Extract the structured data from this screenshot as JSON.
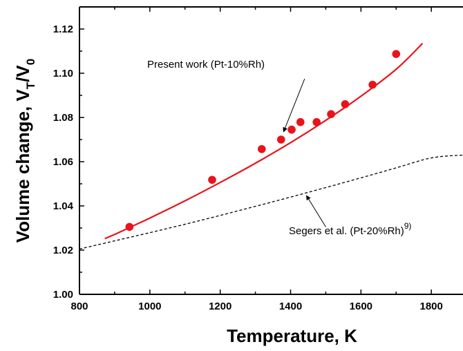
{
  "chart_data": {
    "type": "scatter",
    "xlabel": "Temperature, K",
    "ylabel": {
      "main": "Volume change, V",
      "sub1": "T",
      "slash": "/V",
      "sub2": "0"
    },
    "xlim": [
      800,
      1890
    ],
    "ylim": [
      1.0,
      1.13
    ],
    "x_ticks": [
      800,
      1000,
      1200,
      1400,
      1600,
      1800
    ],
    "y_ticks": [
      1.0,
      1.02,
      1.04,
      1.06,
      1.08,
      1.1,
      1.12
    ],
    "grid": false,
    "series": [
      {
        "name": "Present work (Pt-10%Rh)",
        "kind": "points",
        "color": "#e8141b",
        "x": [
          942,
          1177,
          1318,
          1373,
          1403,
          1428,
          1474,
          1515,
          1555,
          1633,
          1700
        ],
        "y": [
          1.0305,
          1.0518,
          1.0657,
          1.07,
          1.0745,
          1.0779,
          1.0779,
          1.0815,
          1.086,
          1.0948,
          1.1087
        ]
      },
      {
        "name": "Present work (Pt-10%Rh)",
        "kind": "fit-line",
        "color": "#e8141b",
        "x": [
          872,
          900,
          950,
          1000,
          1100,
          1200,
          1300,
          1400,
          1500,
          1600,
          1700,
          1775
        ],
        "y": [
          1.0252,
          1.0271,
          1.0308,
          1.0345,
          1.0423,
          1.0506,
          1.0593,
          1.0686,
          1.0787,
          1.0896,
          1.1018,
          1.1135
        ]
      },
      {
        "name": "Segers et al. (Pt-20%Rh)",
        "kind": "dashed-line",
        "color": "#000000",
        "x": [
          800,
          900,
          1000,
          1100,
          1200,
          1300,
          1400,
          1500,
          1600,
          1700,
          1800,
          1890
        ],
        "y": [
          1.0205,
          1.0242,
          1.0279,
          1.0317,
          1.0357,
          1.0398,
          1.044,
          1.0483,
          1.0527,
          1.0572,
          1.0617,
          1.063
        ]
      }
    ],
    "annotations": [
      {
        "text": "Present work (Pt-10%Rh)",
        "arrow_from": [
          1440,
          1.0975
        ],
        "arrow_to": [
          1380,
          1.0735
        ]
      },
      {
        "text": "Segers et al. (Pt-20%Rh)",
        "superscript": "9)",
        "arrow_from": [
          1500,
          1.0305
        ],
        "arrow_to": [
          1445,
          1.0447
        ]
      }
    ]
  }
}
